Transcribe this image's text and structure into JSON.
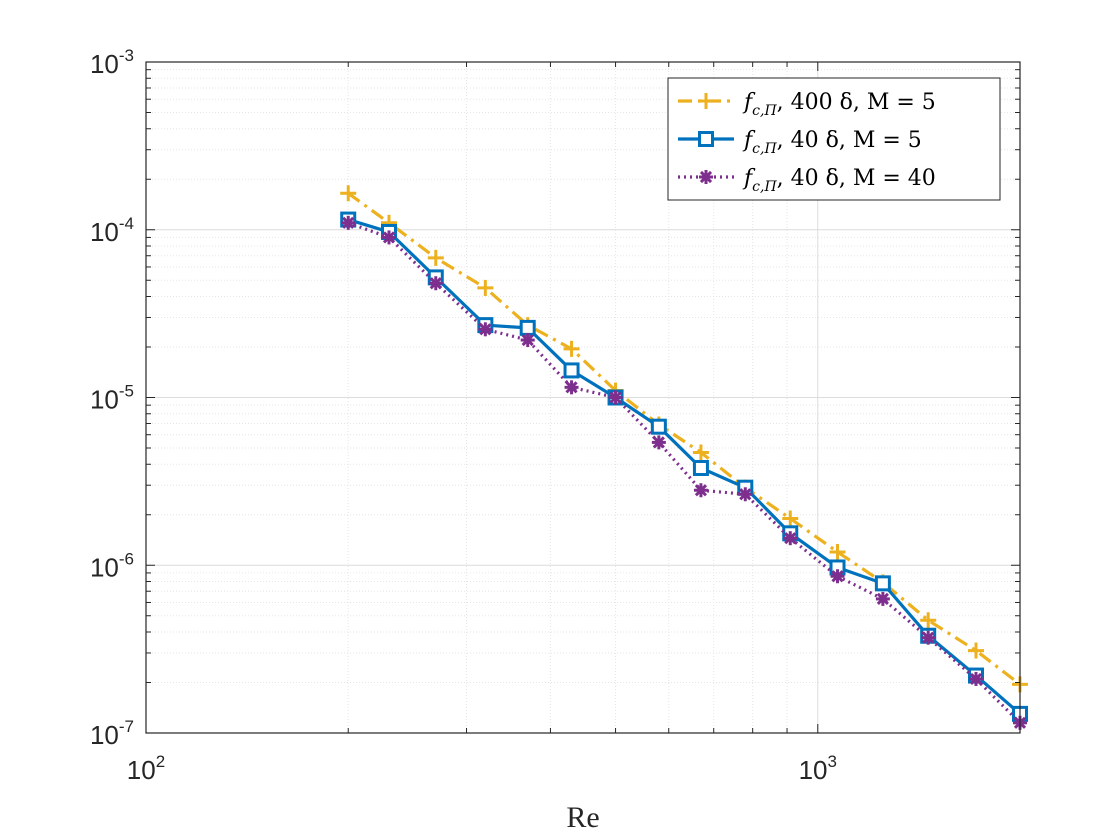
{
  "chart_data": {
    "type": "line",
    "xscale": "log",
    "yscale": "log",
    "xlabel": "Re",
    "ylabel": "",
    "title": "",
    "xlim": [
      100,
      2000
    ],
    "ylim": [
      1e-07,
      0.001
    ],
    "grid": true,
    "minor_grid": true,
    "legend_position": "top-right",
    "x_ticks": [
      {
        "value": 100,
        "base": "10",
        "exp": "2"
      },
      {
        "value": 1000,
        "base": "10",
        "exp": "3"
      }
    ],
    "y_ticks": [
      {
        "value": 1e-07,
        "base": "10",
        "exp": "-7"
      },
      {
        "value": 1e-06,
        "base": "10",
        "exp": "-6"
      },
      {
        "value": 1e-05,
        "base": "10",
        "exp": "-5"
      },
      {
        "value": 0.0001,
        "base": "10",
        "exp": "-4"
      },
      {
        "value": 0.001,
        "base": "10",
        "exp": "-3"
      }
    ],
    "x": [
      200,
      230,
      270,
      320,
      370,
      430,
      500,
      580,
      670,
      780,
      910,
      1070,
      1250,
      1460,
      1720,
      2000
    ],
    "series": [
      {
        "name": "f_{c,Π}, 400 δ, M = 5",
        "legend": {
          "f": "f",
          "sub": "c,Π",
          "rest": ", 400 δ, M = 5"
        },
        "color": "#EDB120",
        "line_style": "dash-dot",
        "marker": "plus",
        "values": [
          0.000165,
          0.00011,
          6.8e-05,
          4.5e-05,
          2.7e-05,
          1.95e-05,
          1.1e-05,
          6.9e-06,
          4.7e-06,
          2.9e-06,
          1.9e-06,
          1.2e-06,
          7.9e-07,
          4.7e-07,
          3.1e-07,
          1.95e-07
        ]
      },
      {
        "name": "f_{c,Π}, 40 δ, M = 5",
        "legend": {
          "f": "f",
          "sub": "c,Π",
          "rest": ", 40 δ, M = 5"
        },
        "color": "#0072BD",
        "line_style": "solid",
        "marker": "square",
        "values": [
          0.000115,
          9.7e-05,
          5.2e-05,
          2.7e-05,
          2.6e-05,
          1.45e-05,
          1e-05,
          6.7e-06,
          3.8e-06,
          2.9e-06,
          1.55e-06,
          9.7e-07,
          7.8e-07,
          3.8e-07,
          2.2e-07,
          1.3e-07
        ]
      },
      {
        "name": "f_{c,Π}, 40 δ, M = 40",
        "legend": {
          "f": "f",
          "sub": "c,Π",
          "rest": ", 40 δ, M = 40"
        },
        "color": "#7E2F8E",
        "line_style": "dotted",
        "marker": "asterisk",
        "values": [
          0.00011,
          9e-05,
          4.8e-05,
          2.55e-05,
          2.2e-05,
          1.15e-05,
          1e-05,
          5.4e-06,
          2.8e-06,
          2.65e-06,
          1.45e-06,
          8.6e-07,
          6.3e-07,
          3.7e-07,
          2.1e-07,
          1.15e-07
        ]
      }
    ]
  }
}
